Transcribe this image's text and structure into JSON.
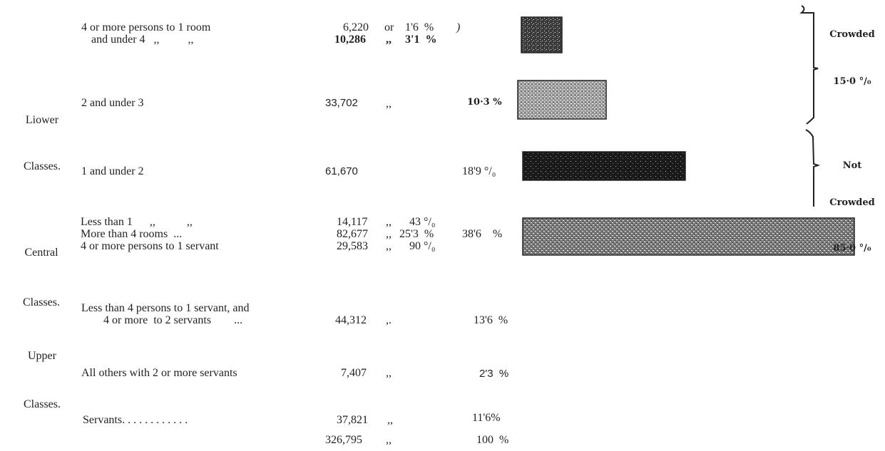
{
  "colors": {
    "ink": "#222222",
    "bar_fill": "#3a3a3a"
  },
  "class_labels": {
    "lower": {
      "line1": "Liower",
      "line2": "Classes."
    },
    "central": {
      "line1": "Central",
      "line2": "Classes."
    },
    "upper": {
      "line1": "Upper",
      "line2": "Classes."
    }
  },
  "rows": [
    {
      "label": "4 or more persons to 1 room",
      "count": "6,220",
      "conn": "or",
      "pct": "1'6  %",
      "extra": ")"
    },
    {
      "label": "and under 4   ,,          ,,",
      "count": "10,286",
      "conn": ",,",
      "pct": "3'1  %"
    },
    {
      "label": "2 and under 3",
      "count": "33,702",
      "conn": ",,",
      "pct": "10·3 %"
    },
    {
      "label": "1 and under 2",
      "count": "61,670",
      "pct": "18'9 °/₀"
    },
    {
      "label": "Less than 1      ,,           ,,",
      "count": "14,117",
      "conn": ",,",
      "pct": "43 °/₀"
    },
    {
      "label": "More than 4 rooms  ...",
      "count": "82,677",
      "conn": ",,",
      "pct": "25'3  %",
      "group_pct": "38'6    %"
    },
    {
      "label": "4 or more persons to 1 servant",
      "count": "29,583",
      "conn": ",,",
      "pct": "90 °/₀"
    },
    {
      "label": "Less than 4 persons to 1 servant, and",
      "label2": "4 or more  to 2 servants        ...",
      "count": "44,312",
      "conn": ",.",
      "pct": "13'6  %"
    },
    {
      "label": "All others with 2 or more servants",
      "count": "7,407",
      "conn": ",,",
      "pct": "2'3  %"
    },
    {
      "label": "Servants. . . . . . . . . . . .",
      "count": "37,821",
      "conn": ",,",
      "pct": "11'6%"
    },
    {
      "count": "326,795",
      "conn": ",,",
      "pct": "100  %"
    }
  ],
  "bracket_labels": {
    "crowded": {
      "line1": "Crowded",
      "line2": "15·0 °/₀"
    },
    "not_crowded": {
      "line1": "Not",
      "line2": "Crowded",
      "line3": "85·0 °/₀"
    }
  },
  "chart_data": {
    "type": "bar",
    "orientation": "horizontal",
    "categories": [
      "1 and under 4",
      "2 and under 3",
      "1 and under 2",
      "Central Classes"
    ],
    "values": [
      4.7,
      10.3,
      18.9,
      38.6
    ],
    "unit": "%"
  }
}
